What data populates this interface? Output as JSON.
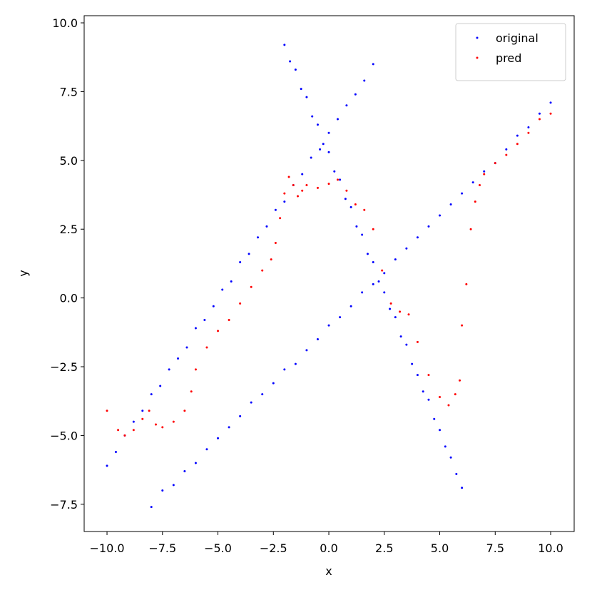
{
  "chart_data": {
    "type": "scatter",
    "x_label": "x",
    "y_label": "y",
    "xlim": [
      -11.03,
      11.06
    ],
    "ylim": [
      -8.49,
      10.26
    ],
    "xticks": [
      {
        "value": -10,
        "label": "−10.0"
      },
      {
        "value": -7.5,
        "label": "−7.5"
      },
      {
        "value": -5,
        "label": "−5.0"
      },
      {
        "value": -2.5,
        "label": "−2.5"
      },
      {
        "value": 0,
        "label": "0.0"
      },
      {
        "value": 2.5,
        "label": "2.5"
      },
      {
        "value": 5,
        "label": "5.0"
      },
      {
        "value": 7.5,
        "label": "7.5"
      },
      {
        "value": 10,
        "label": "10.0"
      }
    ],
    "yticks": [
      {
        "value": -7.5,
        "label": "−7.5"
      },
      {
        "value": -5,
        "label": "−5.0"
      },
      {
        "value": -2.5,
        "label": "−2.5"
      },
      {
        "value": 0,
        "label": "0.0"
      },
      {
        "value": 2.5,
        "label": "2.5"
      },
      {
        "value": 5,
        "label": "5.0"
      },
      {
        "value": 7.5,
        "label": "7.5"
      },
      {
        "value": 10,
        "label": "10.0"
      }
    ],
    "legend": "upper right",
    "series": [
      {
        "name": "original",
        "color": "#0000ff",
        "x": [
          -10,
          -9.6,
          -9.2,
          -8.8,
          -8.4,
          -8,
          -7.6,
          -7.2,
          -6.8,
          -6.4,
          -6,
          -5.6,
          -5.2,
          -4.8,
          -4.4,
          -4,
          -3.6,
          -3.2,
          -2.8,
          -2.4,
          -2,
          -1.6,
          -1.2,
          -0.8,
          -0.4,
          0,
          0.4,
          0.8,
          1.2,
          1.6,
          2,
          -2,
          -1.75,
          -1.5,
          -1.25,
          -1,
          -0.75,
          -0.5,
          -0.25,
          0,
          0.25,
          0.5,
          0.75,
          1,
          1.25,
          1.5,
          1.75,
          2,
          2.25,
          2.5,
          2.75,
          3,
          3.25,
          3.5,
          3.75,
          4,
          4.25,
          4.5,
          4.75,
          5,
          5.25,
          5.5,
          5.75,
          6,
          -8,
          -7.5,
          -7,
          -6.5,
          -6,
          -5.5,
          -5,
          -4.5,
          -4,
          -3.5,
          -3,
          -2.5,
          -2,
          -1.5,
          -1,
          -0.5,
          0,
          0.5,
          1,
          1.5,
          2,
          2.5,
          3,
          3.5,
          4,
          4.5,
          5,
          5.5,
          6,
          6.5,
          7,
          7.5,
          8,
          8.5,
          9,
          9.5,
          10
        ],
        "values": [
          -6.1,
          -5.6,
          -5,
          -4.5,
          -4.1,
          -3.5,
          -3.2,
          -2.6,
          -2.2,
          -1.8,
          -1.1,
          -0.8,
          -0.3,
          0.3,
          0.6,
          1.3,
          1.6,
          2.2,
          2.6,
          3.2,
          3.5,
          4.1,
          4.5,
          5.1,
          5.4,
          6,
          6.5,
          7,
          7.4,
          7.9,
          8.5,
          9.2,
          8.6,
          8.3,
          7.6,
          7.3,
          6.6,
          6.3,
          5.6,
          5.3,
          4.6,
          4.3,
          3.6,
          3.3,
          2.6,
          2.3,
          1.6,
          1.3,
          0.6,
          0.2,
          -0.4,
          -0.7,
          -1.4,
          -1.7,
          -2.4,
          -2.8,
          -3.4,
          -3.7,
          -4.4,
          -4.8,
          -5.4,
          -5.8,
          -6.4,
          -6.9,
          -7.6,
          -7,
          -6.8,
          -6.3,
          -6,
          -5.5,
          -5.1,
          -4.7,
          -4.3,
          -3.8,
          -3.5,
          -3.1,
          -2.6,
          -2.4,
          -1.9,
          -1.5,
          -1,
          -0.7,
          -0.3,
          0.2,
          0.5,
          0.9,
          1.4,
          1.8,
          2.2,
          2.6,
          3,
          3.4,
          3.8,
          4.2,
          4.6,
          4.9,
          5.4,
          5.9,
          6.2,
          6.7,
          7.1
        ]
      },
      {
        "name": "pred",
        "color": "#ff0000",
        "x": [
          -10,
          -9.5,
          -9.2,
          -8.8,
          -8.4,
          -8.1,
          -7.8,
          -7.5,
          -7,
          -6.5,
          -6.2,
          -6,
          -5.5,
          -5,
          -4.5,
          -4,
          -3.5,
          -3,
          -2.6,
          -2.4,
          -2.2,
          -2,
          -1.8,
          -1.6,
          -1.4,
          -1.2,
          -1,
          -0.5,
          0,
          0.4,
          0.8,
          1.2,
          1.6,
          2,
          2.4,
          2.8,
          3.2,
          3.6,
          4,
          4.5,
          5,
          5.4,
          5.7,
          5.9,
          6,
          6.2,
          6.4,
          6.6,
          6.8,
          7,
          7.5,
          8,
          8.5,
          9,
          9.5,
          10
        ],
        "values": [
          -4.1,
          -4.8,
          -5,
          -4.8,
          -4.4,
          -4.1,
          -4.6,
          -4.7,
          -4.5,
          -4.1,
          -3.4,
          -2.6,
          -1.8,
          -1.2,
          -0.8,
          -0.2,
          0.4,
          1,
          1.4,
          2,
          2.9,
          3.8,
          4.4,
          4.1,
          3.7,
          3.9,
          4.1,
          4,
          4.15,
          4.3,
          3.9,
          3.4,
          3.2,
          2.5,
          1,
          -0.2,
          -0.5,
          -0.6,
          -1.6,
          -2.8,
          -3.6,
          -3.9,
          -3.5,
          -3,
          -1,
          0.5,
          2.5,
          3.5,
          4.1,
          4.5,
          4.9,
          5.2,
          5.6,
          6,
          6.5,
          6.7
        ]
      }
    ]
  }
}
